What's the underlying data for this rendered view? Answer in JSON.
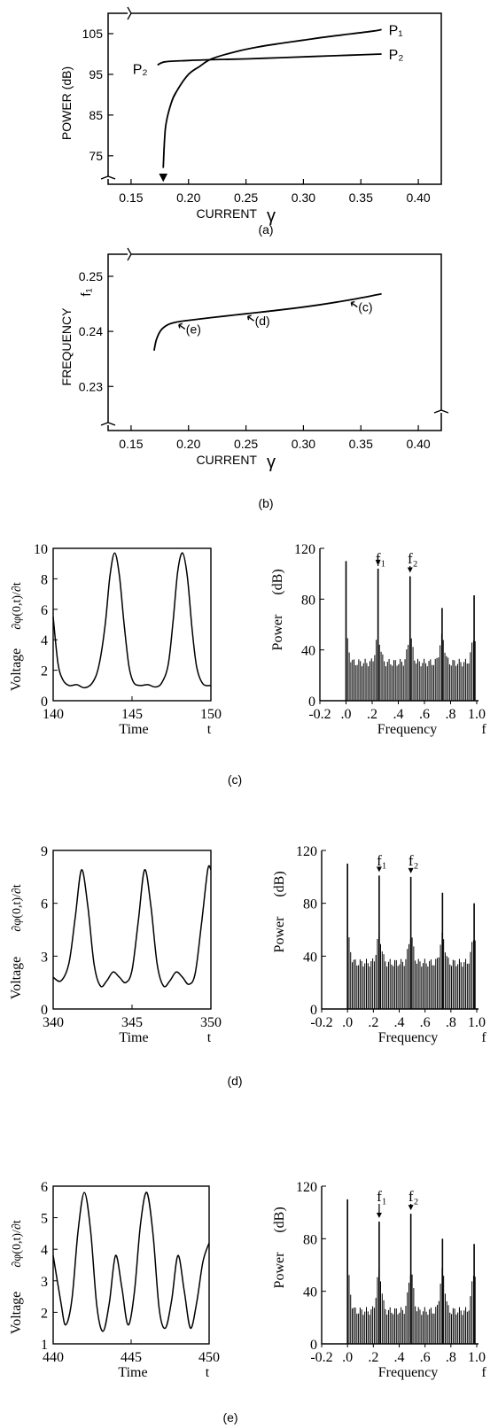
{
  "panels": {
    "a": {
      "caption": "(a)"
    },
    "b": {
      "caption": "(b)"
    },
    "c": {
      "caption": "(c)"
    },
    "d": {
      "caption": "(d)"
    },
    "e": {
      "caption": "(e)"
    }
  },
  "chart_data": [
    {
      "id": "a",
      "type": "line",
      "ylabel": "POWER (dB)",
      "xlabel": "CURRENT",
      "xlabel_symbol": "γ",
      "xlim": [
        0.13,
        0.42
      ],
      "ylim": [
        68,
        110
      ],
      "x_ticks": [
        "0.15",
        "0.20",
        "0.25",
        "0.30",
        "0.35",
        "0.40"
      ],
      "y_ticks": [
        "105",
        "95",
        "85",
        "75"
      ],
      "grid": false,
      "series": [
        {
          "name": "P₁",
          "x": [
            0.178,
            0.18,
            0.185,
            0.19,
            0.2,
            0.21,
            0.22,
            0.24,
            0.26,
            0.28,
            0.3,
            0.32,
            0.34,
            0.36,
            0.368
          ],
          "y": [
            72,
            82,
            88,
            91,
            95,
            97,
            98.8,
            100.5,
            101.7,
            102.6,
            103.4,
            104.2,
            104.9,
            105.6,
            106
          ]
        },
        {
          "name": "P₂",
          "x": [
            0.173,
            0.18,
            0.2,
            0.22,
            0.25,
            0.28,
            0.31,
            0.34,
            0.368
          ],
          "y": [
            97.3,
            98.1,
            98.4,
            98.6,
            98.8,
            99.1,
            99.4,
            99.7,
            100
          ]
        }
      ],
      "annotations": [
        {
          "text": "P₂",
          "at": "left start of P₂ curve"
        },
        {
          "text": "↓",
          "at": "x=0.178 onset arrow"
        }
      ]
    },
    {
      "id": "b",
      "type": "line",
      "ylabel": "FREQUENCY",
      "ylabel_symbol": "f₁",
      "xlabel": "CURRENT",
      "xlabel_symbol": "γ",
      "xlim": [
        0.13,
        0.42
      ],
      "ylim": [
        0.222,
        0.254
      ],
      "x_ticks": [
        "0.15",
        "0.20",
        "0.25",
        "0.30",
        "0.35",
        "0.40"
      ],
      "y_ticks": [
        "0.25",
        "0.24",
        "0.23"
      ],
      "grid": false,
      "series": [
        {
          "x": [
            0.17,
            0.172,
            0.176,
            0.182,
            0.19,
            0.2,
            0.22,
            0.25,
            0.28,
            0.31,
            0.34,
            0.368
          ],
          "y": [
            0.2365,
            0.2385,
            0.2402,
            0.2412,
            0.2417,
            0.242,
            0.2425,
            0.2432,
            0.2439,
            0.2447,
            0.2457,
            0.2468
          ]
        }
      ],
      "markers": [
        {
          "label": "(c)",
          "x": 0.34,
          "y": 0.2457
        },
        {
          "label": "(d)",
          "x": 0.25,
          "y": 0.2432
        },
        {
          "label": "(e)",
          "x": 0.19,
          "y": 0.2417
        }
      ]
    },
    {
      "id": "c-time",
      "type": "line",
      "ylabel": "Voltage",
      "ylabel2": "∂φ(0,t)/∂t",
      "xlabel": "Time",
      "xlabel_symbol": "t",
      "xlim": [
        140,
        150
      ],
      "ylim": [
        0,
        10
      ],
      "x_ticks": [
        "140",
        "145",
        "150"
      ],
      "y_ticks": [
        "0",
        "2",
        "4",
        "6",
        "8",
        "10"
      ],
      "series": [
        {
          "x": [
            140,
            140.3,
            140.6,
            141,
            141.5,
            142,
            142.5,
            142.9,
            143.3,
            143.6,
            143.9,
            144.2,
            144.5,
            144.8,
            145.1,
            145.5,
            146,
            146.5,
            146.9,
            147.3,
            147.6,
            147.9,
            148.2,
            148.5,
            148.8,
            149.1,
            149.5,
            150
          ],
          "y": [
            5.5,
            2.5,
            1.4,
            1.0,
            1.05,
            0.85,
            1.2,
            2.3,
            5,
            8.2,
            9.7,
            8.2,
            5,
            2.3,
            1.2,
            1.0,
            1.05,
            0.9,
            1.2,
            2.4,
            5.2,
            8.5,
            9.7,
            8.2,
            4.8,
            2.2,
            1.1,
            1.0
          ]
        }
      ]
    },
    {
      "id": "c-spectrum",
      "type": "bar",
      "ylabel": "Power",
      "ylabel_unit": "(dB)",
      "xlabel": "Frequency",
      "xlabel_symbol": "f",
      "xlim": [
        -0.2,
        1.0
      ],
      "ylim": [
        0,
        120
      ],
      "x_ticks": [
        "-0.2",
        ".0",
        ".2",
        ".4",
        ".6",
        ".8",
        "1.0"
      ],
      "y_ticks": [
        "0",
        "40",
        "80",
        "120"
      ],
      "peaks": [
        {
          "x": 0.0,
          "y": 110
        },
        {
          "x": 0.245,
          "y": 104,
          "label": "f₁"
        },
        {
          "x": 0.49,
          "y": 98,
          "label": "f₂"
        },
        {
          "x": 0.735,
          "y": 73
        },
        {
          "x": 0.98,
          "y": 83
        }
      ],
      "floor": {
        "edge": 30,
        "hump": 50
      }
    },
    {
      "id": "d-time",
      "type": "line",
      "ylabel": "Voltage",
      "ylabel2": "∂φ(0,t)/∂t",
      "xlabel": "Time",
      "xlabel_symbol": "t",
      "xlim": [
        340,
        350
      ],
      "ylim": [
        0,
        9
      ],
      "x_ticks": [
        "340",
        "345",
        "350"
      ],
      "y_ticks": [
        "0",
        "3",
        "6",
        "9"
      ],
      "series": [
        {
          "x": [
            340,
            340.5,
            341,
            341.4,
            341.8,
            342.2,
            342.6,
            343,
            343.4,
            343.8,
            344.2,
            344.6,
            345,
            345.4,
            345.8,
            346.2,
            346.6,
            347,
            347.4,
            347.8,
            348.2,
            348.6,
            349,
            349.4,
            349.8,
            350
          ],
          "y": [
            1.8,
            1.6,
            2.6,
            5.2,
            7.9,
            5.8,
            2.5,
            1.3,
            1.6,
            2.1,
            1.8,
            1.5,
            2.2,
            5.0,
            7.9,
            5.8,
            2.5,
            1.3,
            1.6,
            2.1,
            1.8,
            1.4,
            2.0,
            4.8,
            7.9,
            7.9
          ]
        }
      ]
    },
    {
      "id": "d-spectrum",
      "type": "bar",
      "ylabel": "Power",
      "ylabel_unit": "(dB)",
      "xlabel": "Frequency",
      "xlabel_symbol": "f",
      "xlim": [
        -0.2,
        1.0
      ],
      "ylim": [
        0,
        120
      ],
      "x_ticks": [
        "-0.2",
        ".0",
        ".2",
        ".4",
        ".6",
        ".8",
        "1.0"
      ],
      "y_ticks": [
        "0",
        "40",
        "80",
        "120"
      ],
      "peaks": [
        {
          "x": 0.0,
          "y": 110
        },
        {
          "x": 0.245,
          "y": 101,
          "label": "f₁"
        },
        {
          "x": 0.49,
          "y": 100,
          "label": "f₂"
        },
        {
          "x": 0.735,
          "y": 88
        },
        {
          "x": 0.98,
          "y": 80
        }
      ],
      "floor": {
        "edge": 35,
        "hump": 55
      }
    },
    {
      "id": "e-time",
      "type": "line",
      "ylabel": "Voltage",
      "ylabel2": "∂φ(0,t)/∂t",
      "xlabel": "Time",
      "xlabel_symbol": "t",
      "xlim": [
        440,
        450
      ],
      "ylim": [
        1,
        6
      ],
      "x_ticks": [
        "440",
        "445",
        "450"
      ],
      "y_ticks": [
        "1",
        "2",
        "3",
        "4",
        "5",
        "6"
      ],
      "series": [
        {
          "x": [
            440,
            440.5,
            440.8,
            441.2,
            441.6,
            442.0,
            442.4,
            442.8,
            443.2,
            443.6,
            444.0,
            444.4,
            444.8,
            445.2,
            445.6,
            446.0,
            446.4,
            446.8,
            447.2,
            447.6,
            448.0,
            448.4,
            448.8,
            449.2,
            449.6,
            450
          ],
          "y": [
            3.8,
            2.3,
            1.6,
            2.4,
            4.6,
            5.8,
            4.6,
            2.2,
            1.4,
            2.3,
            3.8,
            2.8,
            1.6,
            2.6,
            4.8,
            5.8,
            4.5,
            2.1,
            1.5,
            2.4,
            3.8,
            2.7,
            1.5,
            2.3,
            3.6,
            4.2
          ]
        }
      ]
    },
    {
      "id": "e-spectrum",
      "type": "bar",
      "ylabel": "Power",
      "ylabel_unit": "(dB)",
      "xlabel": "Frequency",
      "xlabel_symbol": "f",
      "xlim": [
        -0.2,
        1.0
      ],
      "ylim": [
        0,
        120
      ],
      "x_ticks": [
        "-0.2",
        ".0",
        ".2",
        ".4",
        ".6",
        ".8",
        "1.0"
      ],
      "y_ticks": [
        "0",
        "40",
        "80",
        "120"
      ],
      "peaks": [
        {
          "x": 0.0,
          "y": 110
        },
        {
          "x": 0.245,
          "y": 93,
          "label": "f₁"
        },
        {
          "x": 0.49,
          "y": 99,
          "label": "f₂"
        },
        {
          "x": 0.735,
          "y": 80
        },
        {
          "x": 0.98,
          "y": 76
        }
      ],
      "floor": {
        "edge": 25,
        "hump": 55
      }
    }
  ]
}
